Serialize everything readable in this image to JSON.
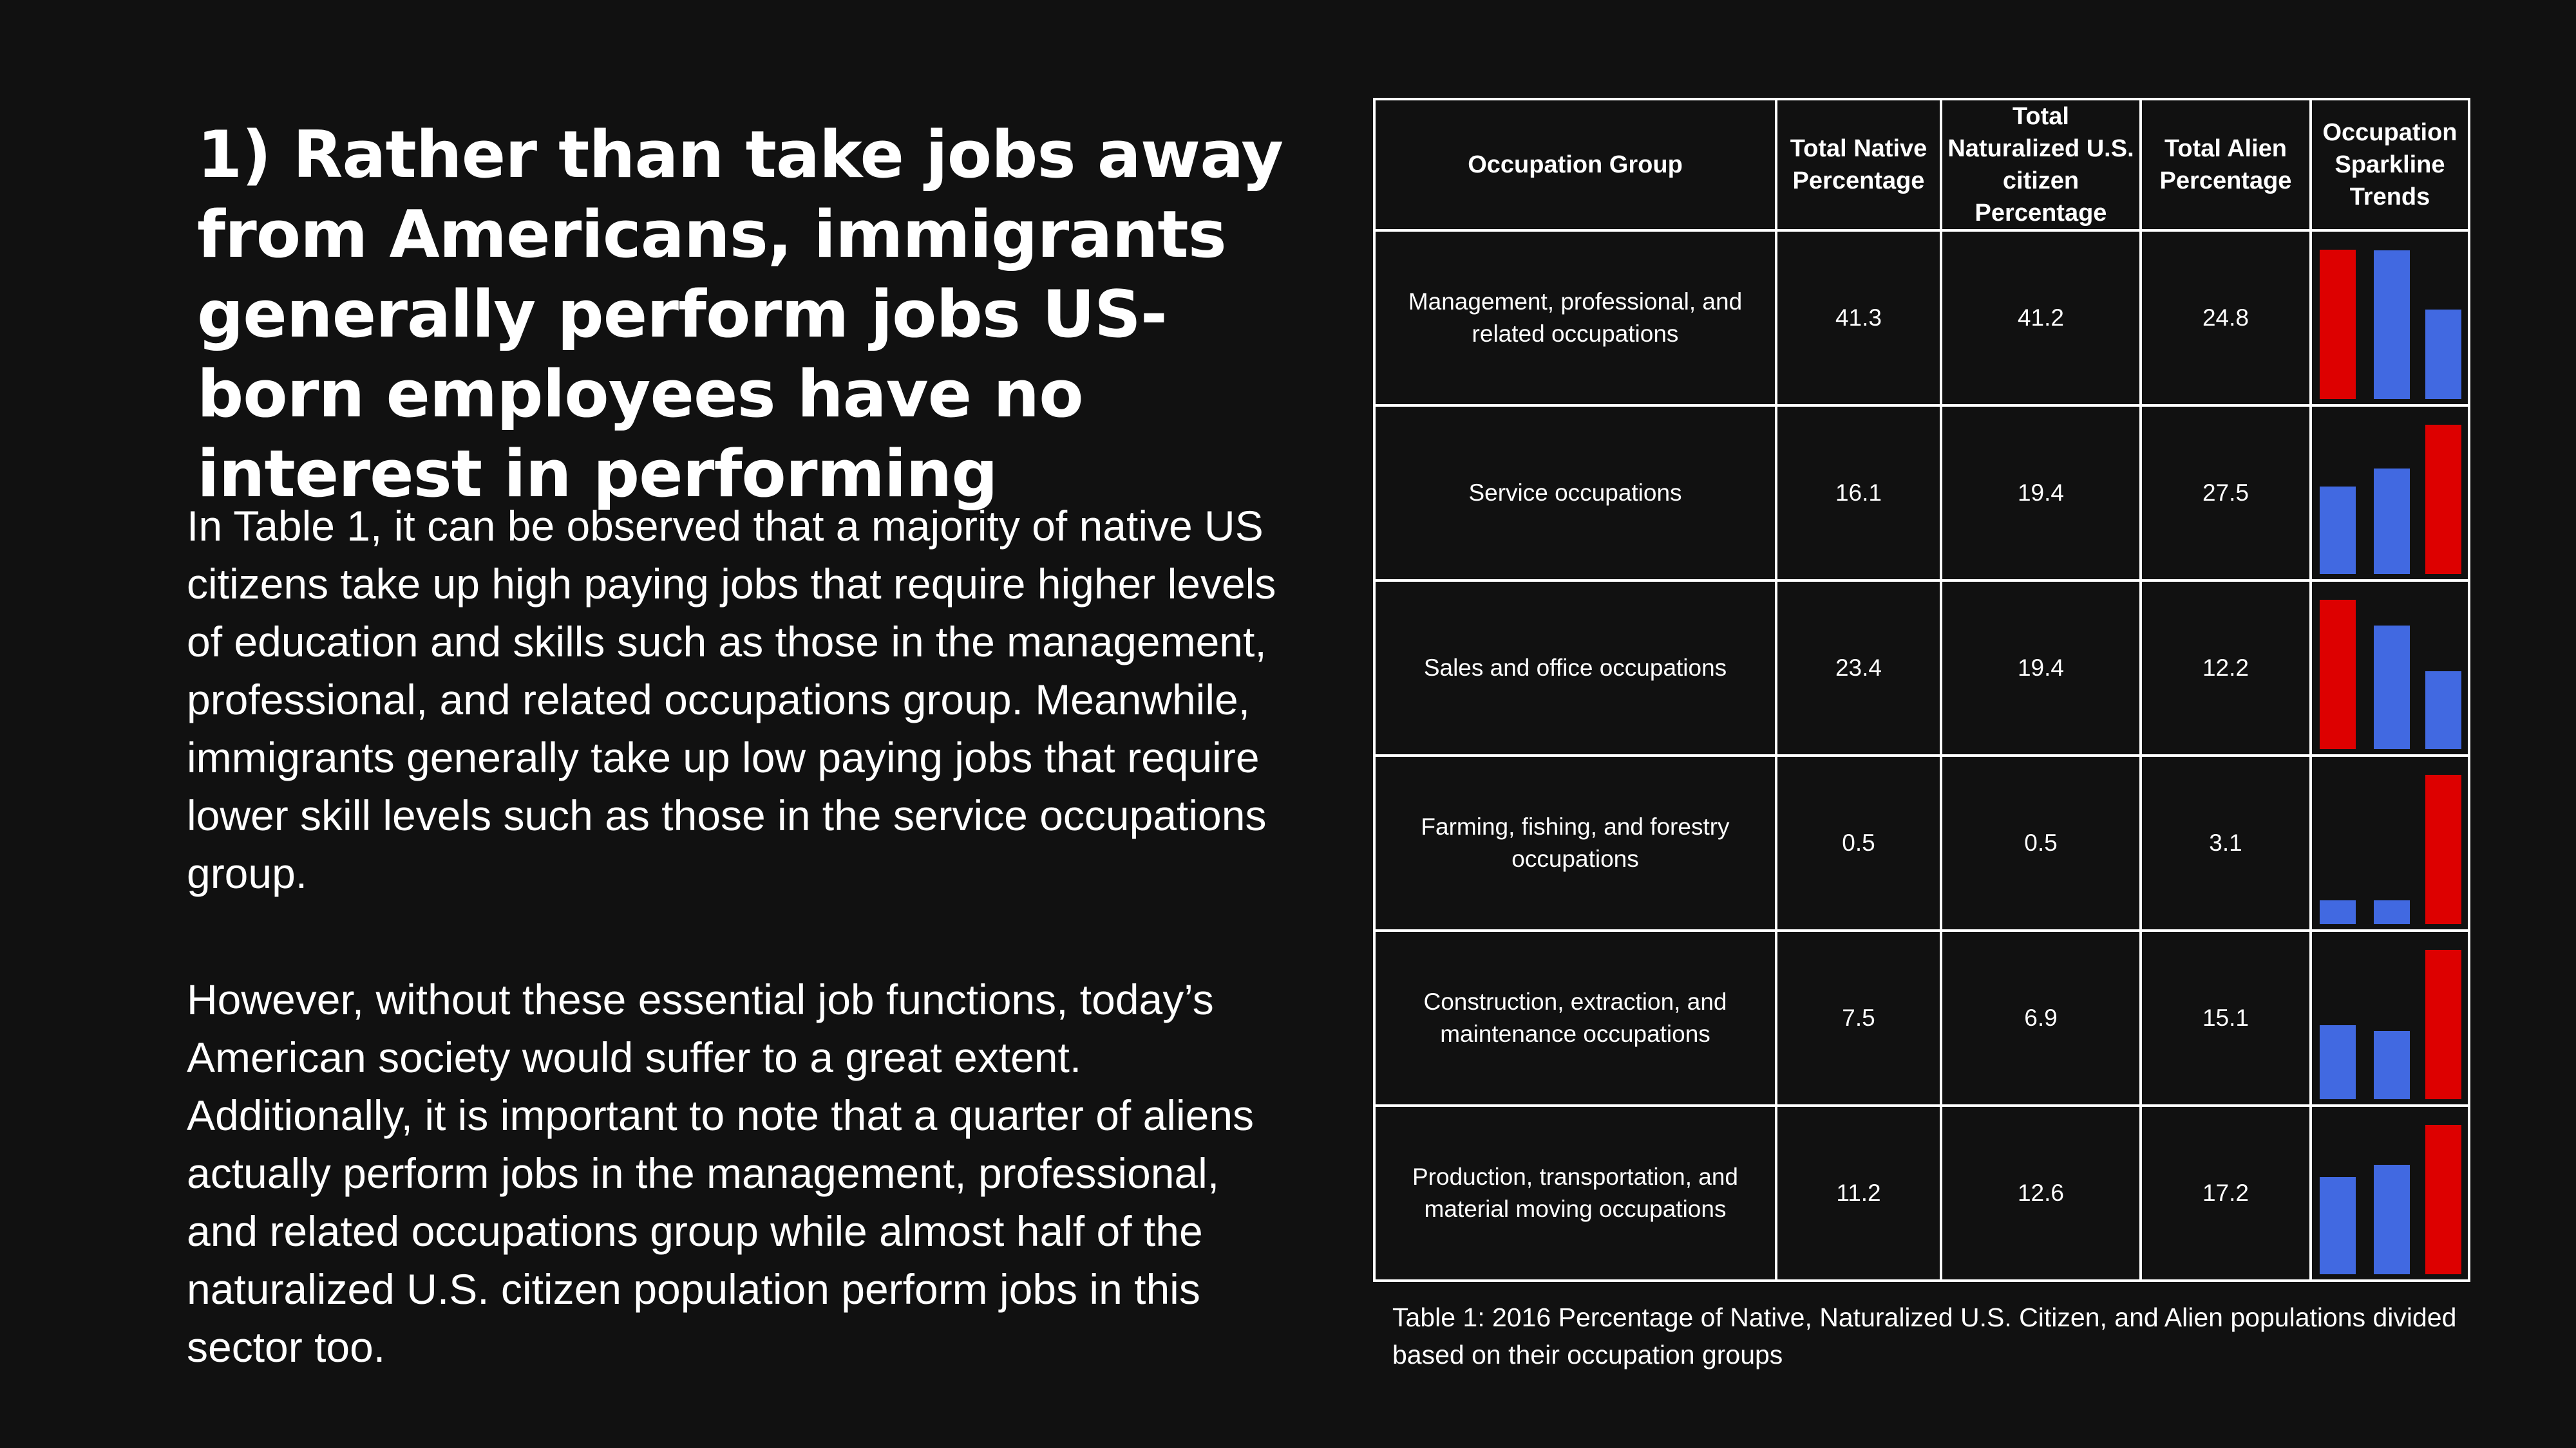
{
  "slide": {
    "title": "1) Rather than take jobs away from Americans, immigrants generally perform jobs US-born employees have no interest in performing",
    "paragraphs": [
      "In Table 1, it can be observed that a majority of native US citizens take up high paying jobs that require higher levels of education and skills such as those in the management, professional, and related occupations group. Meanwhile, immigrants generally take up low paying jobs that require lower skill levels such as those in the service occupations group.",
      "However, without these essential job functions, today’s American society would suffer to a great extent. Additionally, it is important to note that a quarter of aliens actually perform jobs in the management, professional, and related occupations group while almost half of the naturalized U.S. citizen population perform jobs in this sector too."
    ]
  },
  "table": {
    "headers": [
      "Occupation Group",
      "Total Native Percentage",
      "Total Naturalized U.S. citizen Percentage",
      "Total Alien Percentage",
      "Occupation Sparkline Trends"
    ],
    "rows": [
      {
        "group": "Management, professional, and related occupations",
        "native": "41.3",
        "naturalized": "41.2",
        "alien": "24.8"
      },
      {
        "group": "Service occupations",
        "native": "16.1",
        "naturalized": "19.4",
        "alien": "27.5"
      },
      {
        "group": "Sales and office occupations",
        "native": "23.4",
        "naturalized": "19.4",
        "alien": "12.2"
      },
      {
        "group": "Farming, fishing, and forestry occupations",
        "native": "0.5",
        "naturalized": "0.5",
        "alien": "3.1"
      },
      {
        "group": "Construction, extraction, and maintenance occupations",
        "native": "7.5",
        "naturalized": "6.9",
        "alien": "15.1"
      },
      {
        "group": "Production, transportation, and material moving occupations",
        "native": "11.2",
        "naturalized": "12.6",
        "alien": "17.2"
      }
    ],
    "caption": "Table 1: 2016 Percentage of Native, Naturalized U.S. Citizen, and Alien populations divided based on their occupation groups"
  },
  "colors": {
    "high": "#dd0000",
    "normal": "#4169e1",
    "background": "#111111",
    "text": "#ffffff"
  }
}
